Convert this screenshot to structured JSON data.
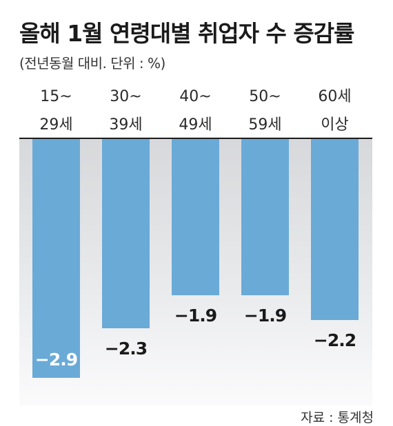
{
  "header": {
    "title": "올해 1월 연령대별 취업자 수 증감률",
    "subtitle": "(전년동월 대비. 단위 : %)"
  },
  "source": "자료 : 통계청",
  "colors": {
    "bar": "#6aaad7",
    "zero_line": "#1a1a1a",
    "label_dark": "#1a1a1a",
    "label_light": "#ffffff"
  },
  "chart_data": {
    "type": "bar",
    "title": "올해 1월 연령대별 취업자 수 증감률",
    "subtitle": "(전년동월 대비. 단위 : %)",
    "categories": [
      [
        "15~",
        "29세"
      ],
      [
        "30~",
        "39세"
      ],
      [
        "40~",
        "49세"
      ],
      [
        "50~",
        "59세"
      ],
      [
        "60세",
        "이상"
      ]
    ],
    "values": [
      -2.9,
      -2.3,
      -1.9,
      -1.9,
      -2.2
    ],
    "value_labels": [
      "−2.9",
      "−2.3",
      "−1.9",
      "−1.9",
      "−2.2"
    ],
    "ylim": [
      -3.0,
      0
    ],
    "xlabel": "",
    "ylabel": "",
    "grid": false,
    "legend": "none"
  }
}
